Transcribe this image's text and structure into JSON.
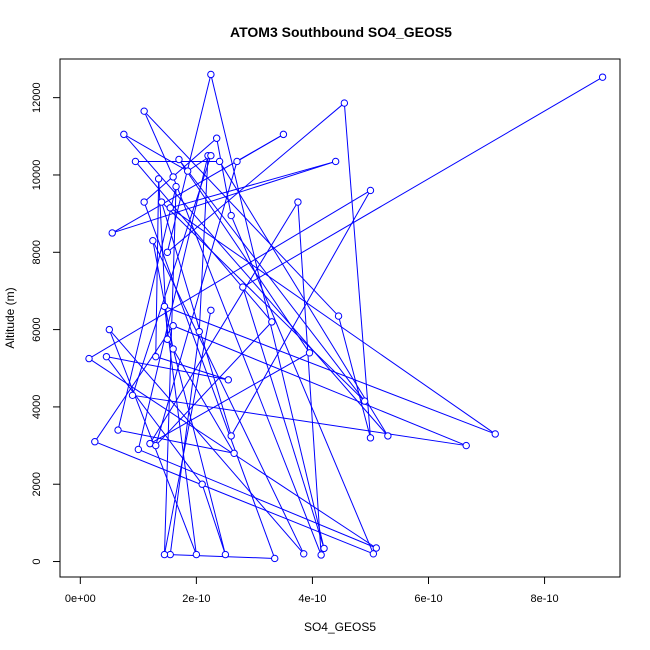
{
  "chart_data": {
    "type": "line",
    "title": "ATOM3 Southbound SO4_GEOS5",
    "xlabel": "SO4_GEOS5",
    "ylabel": "Altitude (m)",
    "xlim": [
      -3.5e-11,
      9.3e-10
    ],
    "ylim": [
      -400,
      13000
    ],
    "x_ticks": [
      {
        "value": 0,
        "label": "0e+00"
      },
      {
        "value": 2e-10,
        "label": "2e-10"
      },
      {
        "value": 4e-10,
        "label": "4e-10"
      },
      {
        "value": 6e-10,
        "label": "6e-10"
      },
      {
        "value": 8e-10,
        "label": "8e-10"
      }
    ],
    "y_ticks": [
      {
        "value": 0,
        "label": "0"
      },
      {
        "value": 2000,
        "label": "2000"
      },
      {
        "value": 4000,
        "label": "4000"
      },
      {
        "value": 6000,
        "label": "6000"
      },
      {
        "value": 8000,
        "label": "8000"
      },
      {
        "value": 10000,
        "label": "10000"
      },
      {
        "value": 12000,
        "label": "12000"
      }
    ],
    "grid": false,
    "legend": "none",
    "series": [
      {
        "color": "#0000ff",
        "marker": "open-circle",
        "points": [
          [
            9e-10,
            12530
          ],
          [
            2.8e-10,
            7100
          ],
          [
            4.2e-10,
            340
          ],
          [
            2.25e-10,
            12600
          ],
          [
            1.5e-10,
            8000
          ],
          [
            4.55e-10,
            11860
          ],
          [
            5e-10,
            3200
          ],
          [
            4.45e-10,
            6350
          ],
          [
            1.1e-10,
            11650
          ],
          [
            1.6e-10,
            9950
          ],
          [
            4.15e-10,
            170
          ],
          [
            3.75e-10,
            9300
          ],
          [
            1.2e-10,
            3050
          ],
          [
            3.95e-10,
            5400
          ],
          [
            1.7e-10,
            10400
          ],
          [
            4.9e-10,
            4150
          ],
          [
            1.4e-10,
            9300
          ],
          [
            2.6e-10,
            3250
          ],
          [
            5e-10,
            9600
          ],
          [
            1.5e-11,
            5250
          ],
          [
            5.1e-10,
            350
          ],
          [
            1e-10,
            2900
          ],
          [
            2.2e-10,
            10500
          ],
          [
            2.05e-10,
            5950
          ],
          [
            1.55e-10,
            180
          ],
          [
            3.35e-10,
            80
          ],
          [
            1.1e-10,
            9300
          ],
          [
            2.35e-10,
            10950
          ],
          [
            2.6e-10,
            8950
          ],
          [
            5.05e-10,
            200
          ],
          [
            2.5e-11,
            3100
          ],
          [
            1.6e-10,
            6100
          ],
          [
            6.65e-10,
            3000
          ],
          [
            9e-11,
            4300
          ],
          [
            2.25e-10,
            10500
          ],
          [
            1.85e-10,
            10100
          ],
          [
            7.5e-11,
            11050
          ],
          [
            5.3e-10,
            3250
          ],
          [
            2.4e-10,
            10350
          ],
          [
            9.5e-11,
            10350
          ],
          [
            3.3e-10,
            6200
          ],
          [
            1.3e-10,
            3000
          ],
          [
            2.7e-10,
            10350
          ],
          [
            3.5e-10,
            11050
          ],
          [
            5.5e-11,
            8500
          ],
          [
            4.4e-10,
            10350
          ],
          [
            1.55e-10,
            9150
          ],
          [
            7.15e-10,
            3300
          ],
          [
            1.45e-10,
            6600
          ],
          [
            2e-10,
            180
          ],
          [
            5e-11,
            6000
          ],
          [
            3.85e-10,
            200
          ],
          [
            1.25e-10,
            8300
          ],
          [
            1.6e-10,
            5500
          ],
          [
            2.5e-10,
            180
          ],
          [
            2.1e-10,
            2000
          ],
          [
            4.5e-11,
            5300
          ],
          [
            2.55e-10,
            4700
          ],
          [
            1.3e-10,
            5300
          ],
          [
            1.35e-10,
            9900
          ],
          [
            1.5e-10,
            5750
          ],
          [
            2.65e-10,
            2800
          ],
          [
            6.5e-11,
            3400
          ],
          [
            1.65e-10,
            9700
          ],
          [
            1.45e-10,
            180
          ],
          [
            2.25e-10,
            6500
          ]
        ]
      }
    ]
  }
}
